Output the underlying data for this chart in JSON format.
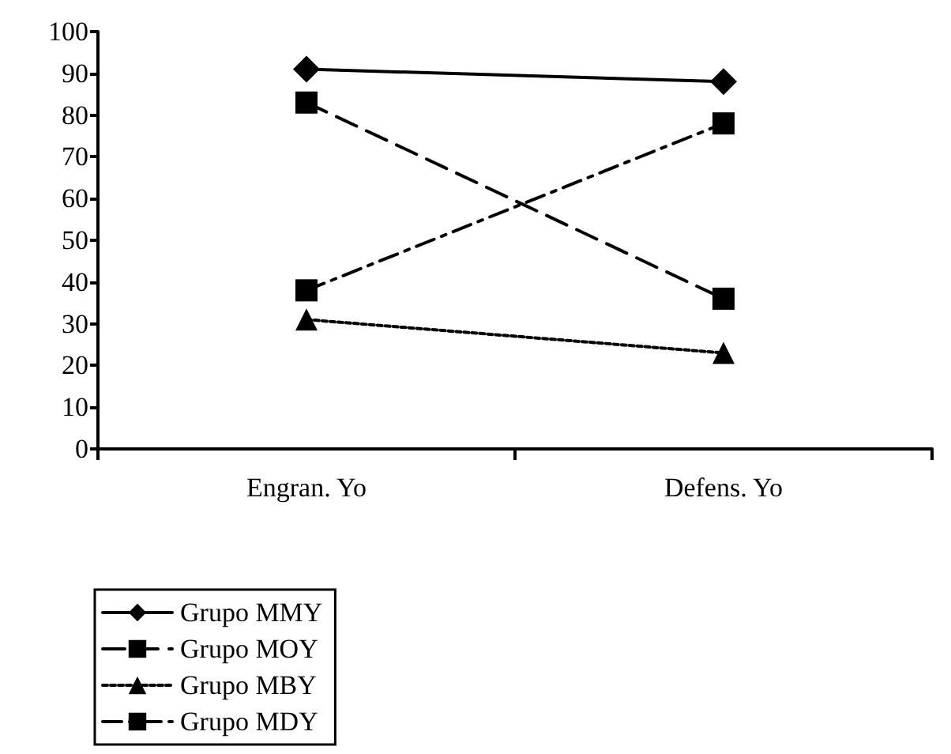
{
  "chart_data": {
    "type": "line",
    "categories": [
      "Engran. Yo",
      "Defens. Yo"
    ],
    "series": [
      {
        "name": "Grupo MMY",
        "color": "#000000",
        "values": [
          91,
          88
        ],
        "marker": "diamond",
        "line_style": "solid"
      },
      {
        "name": "Grupo MOY",
        "color": "#000000",
        "values": [
          83,
          36
        ],
        "marker": "square",
        "line_style": "dashed"
      },
      {
        "name": "Grupo MBY",
        "color": "#000000",
        "values": [
          31,
          23
        ],
        "marker": "triangle",
        "line_style": "dotted"
      },
      {
        "name": "Grupo MDY",
        "color": "#000000",
        "values": [
          38,
          78
        ],
        "marker": "square",
        "line_style": "dashdot"
      }
    ],
    "ylim": [
      0,
      100
    ],
    "yticks": [
      0,
      10,
      20,
      30,
      40,
      50,
      60,
      70,
      80,
      90,
      100
    ],
    "grid": false,
    "legend": "bottom left"
  }
}
